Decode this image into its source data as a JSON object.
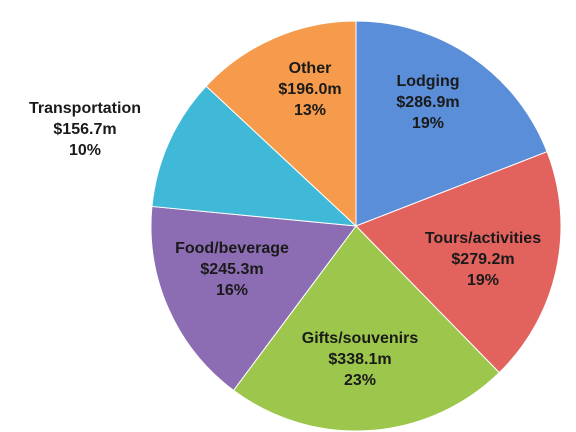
{
  "chart_data": {
    "type": "pie",
    "categories": [
      "Lodging",
      "Tours/activities",
      "Gifts/souvenirs",
      "Food/beverage",
      "Transportation",
      "Other"
    ],
    "values": [
      286.9,
      279.2,
      338.1,
      245.3,
      156.7,
      196.0
    ],
    "value_labels": [
      "$286.9m",
      "$279.2m",
      "$338.1m",
      "$245.3m",
      "$156.7m",
      "$196.0m"
    ],
    "percent_labels": [
      "19%",
      "19%",
      "23%",
      "16%",
      "10%",
      "13%"
    ],
    "colors": [
      "#5b8ed8",
      "#e2625e",
      "#9cc74c",
      "#8c6cb2",
      "#40b9d9",
      "#f69b4c"
    ]
  }
}
